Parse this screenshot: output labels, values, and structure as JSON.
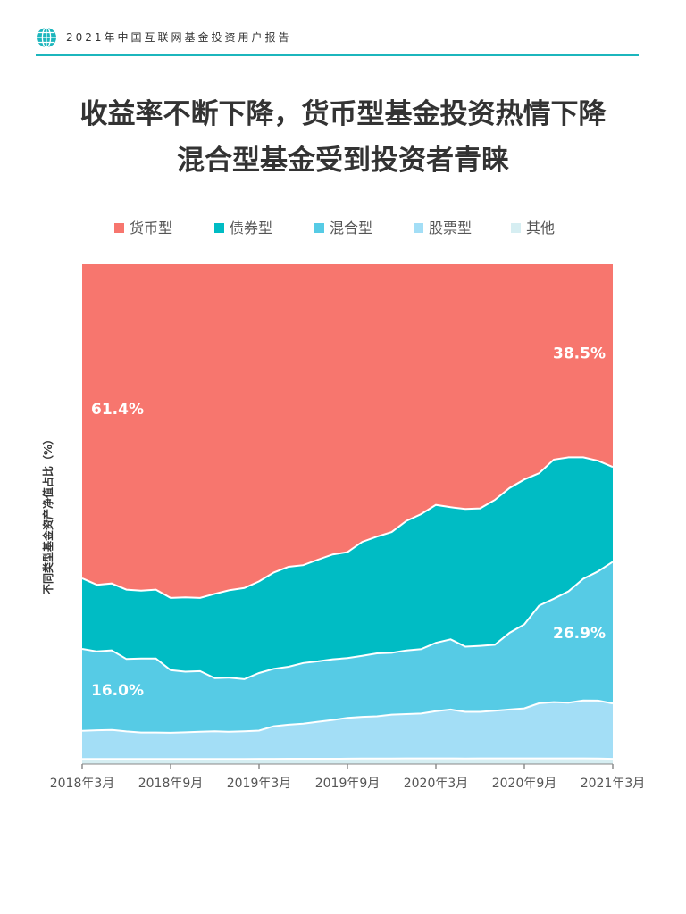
{
  "header": {
    "report_title": "2021年中国互联网基金投资用户报告",
    "accent_color": "#1cb6bd"
  },
  "title": {
    "line1": "收益率不断下降，货币型基金投资热情下降",
    "line2": "混合型基金受到投资者青睐"
  },
  "chart_data": {
    "type": "area",
    "stacked": true,
    "normalized": true,
    "ylabel": "不同类型基金资产净值占比（%）",
    "ylim": [
      0,
      100
    ],
    "grid": false,
    "legend": "top",
    "x_tick_labels": [
      "2018年3月",
      "2018年9月",
      "2019年3月",
      "2019年9月",
      "2020年3月",
      "2020年9月",
      "2021年3月"
    ],
    "series": [
      {
        "name": "其他",
        "color": "#d6eef2",
        "values": [
          1.0,
          1.0,
          1.0,
          1.0,
          1.0,
          1.0,
          1.0,
          1.0,
          1.0,
          1.0,
          1.0,
          1.0,
          1.0,
          1.0,
          1.0,
          1.0,
          1.0,
          1.0,
          1.0,
          1.0,
          1.0,
          1.0,
          1.0,
          1.0,
          1.0,
          1.0,
          1.0,
          1.0,
          1.0,
          1.0,
          1.0,
          1.0,
          1.0,
          1.0,
          1.0,
          1.0,
          1.0
        ]
      },
      {
        "name": "股票型",
        "color": "#a3def6",
        "values": [
          5.5,
          5.6,
          5.7,
          5.4,
          5.2,
          5.2,
          5.2,
          5.3,
          5.4,
          5.3,
          5.2,
          5.3,
          5.4,
          6.2,
          6.4,
          6.6,
          6.9,
          7.2,
          7.5,
          7.5,
          7.5,
          7.8,
          7.8,
          7.8,
          8.2,
          8.5,
          8.3,
          8.2,
          8.4,
          8.6,
          8.8,
          9.7,
          9.9,
          9.8,
          10.2,
          10.3,
          10.5
        ]
      },
      {
        "name": "混合型",
        "color": "#56cbe5",
        "values": [
          16.0,
          15.4,
          15.6,
          14.2,
          14.5,
          14.5,
          12.4,
          12.0,
          12.0,
          10.2,
          10.4,
          10.0,
          11.0,
          10.9,
          10.9,
          11.4,
          11.3,
          11.3,
          11.0,
          11.0,
          11.2,
          11.0,
          11.2,
          11.2,
          11.9,
          12.2,
          11.6,
          11.6,
          11.6,
          13.5,
          14.8,
          17.2,
          18.2,
          19.6,
          21.4,
          23.0,
          26.9
        ]
      },
      {
        "name": "债券型",
        "color": "#00bcc4",
        "values": [
          13.8,
          13.0,
          13.1,
          13.6,
          13.3,
          13.5,
          14.3,
          14.7,
          14.5,
          16.2,
          16.8,
          17.5,
          17.5,
          18.3,
          18.8,
          18.4,
          19.0,
          19.5,
          19.5,
          20.5,
          20.8,
          21.5,
          22.8,
          23.5,
          24.0,
          23.0,
          24.5,
          24.2,
          25.5,
          25.5,
          25.5,
          23.3,
          24.5,
          23.6,
          21.4,
          19.7,
          18.0
        ]
      },
      {
        "name": "货币型",
        "color": "#f7766e",
        "values": [
          61.4,
          62.6,
          62.6,
          63.8,
          64.0,
          63.8,
          66.1,
          66.0,
          66.1,
          63.3,
          62.6,
          62.2,
          60.6,
          58.6,
          56.9,
          56.6,
          55.2,
          54.0,
          53.0,
          50.0,
          48.5,
          47.7,
          45.2,
          43.5,
          41.9,
          42.3,
          43.6,
          43.0,
          41.5,
          39.4,
          37.9,
          36.8,
          34.4,
          34.0,
          34.0,
          35.0,
          38.5
        ]
      }
    ],
    "annotations": [
      {
        "text": "61.4%",
        "series": "货币型",
        "at": "start"
      },
      {
        "text": "38.5%",
        "series": "货币型",
        "at": "end"
      },
      {
        "text": "16.0%",
        "series": "混合型",
        "at": "start"
      },
      {
        "text": "26.9%",
        "series": "混合型",
        "at": "end"
      }
    ]
  }
}
